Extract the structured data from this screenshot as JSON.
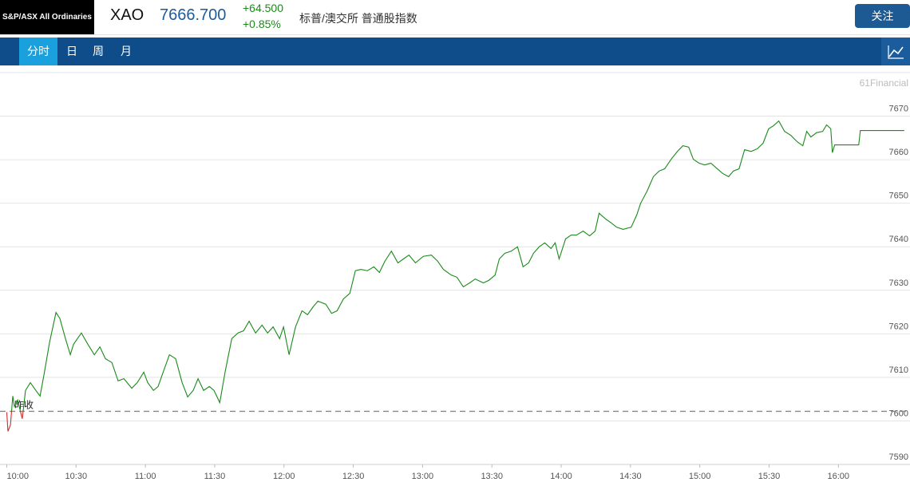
{
  "header": {
    "logo": "S&P/ASX All Ordinaries",
    "symbol": "XAO",
    "price": "7666.700",
    "change": "+64.500",
    "change_pct": "+0.85%",
    "name": "标普/澳交所 普通股指数",
    "follow_button": "关注"
  },
  "tabs": [
    "分时",
    "日",
    "周",
    "月"
  ],
  "chart_data": {
    "type": "line",
    "watermark": "61Financial",
    "color": "#1a8a1a",
    "down_color": "#d62b2b",
    "reference_line": {
      "label": "昨收",
      "value": 7602.2
    },
    "x": [
      0,
      0.5,
      1.6,
      2.6,
      3.3,
      4.7,
      6.7,
      8.1,
      10.2,
      12.6,
      14.4,
      16.1,
      18.5,
      21.3,
      23,
      25.4,
      27.5,
      28.9,
      30.6,
      32.3,
      35.1,
      37.9,
      40.3,
      42.7,
      45.5,
      48.2,
      50.7,
      54.1,
      56.5,
      59.3,
      61,
      63.5,
      65.5,
      67.9,
      70.4,
      73.1,
      75.9,
      78.3,
      80.7,
      82.8,
      85.2,
      87.7,
      89.7,
      92.2,
      94.6,
      97.4,
      100.1,
      102.5,
      104.9,
      107.7,
      110.5,
      112.9,
      115.3,
      118.1,
      119.8,
      122.2,
      125,
      127.8,
      130.2,
      132.6,
      134.7,
      138.1,
      140.6,
      143,
      145.7,
      148.5,
      150.9,
      153.3,
      156.1,
      158.9,
      161.3,
      163.7,
      166.5,
      169.3,
      171.7,
      174.1,
      176.9,
      180.3,
      183.8,
      186.5,
      189,
      192.4,
      194.9,
      197.6,
      200.4,
      202.8,
      206.3,
      208.7,
      211.4,
      213.2,
      215.6,
      218.4,
      221.1,
      223.5,
      225.9,
      228,
      230.5,
      232.9,
      235.6,
      237.4,
      239.1,
      241.9,
      244.3,
      246.7,
      249.5,
      252.3,
      254.7,
      256.4,
      259.2,
      261.6,
      264,
      266.8,
      270.3,
      272.7,
      274.4,
      277.2,
      279.9,
      282.4,
      284.8,
      287.6,
      290.3,
      292.7,
      295.2,
      297.2,
      299.7,
      302.1,
      304.8,
      307.6,
      310,
      312.5,
      314.5,
      317,
      319.4,
      322.2,
      324.9,
      327.4,
      329.8,
      331.9,
      334.2,
      336.7,
      339.4,
      342.2,
      344.6,
      346.3,
      348.1,
      350.5,
      353.2,
      354.9,
      356.7,
      357.4,
      358.4,
      368.8,
      369.5,
      388.5
    ],
    "values": [
      7602.0,
      7597.6,
      7599.1,
      7605.7,
      7603.3,
      7604.8,
      7600.5,
      7607.0,
      7608.8,
      7607.0,
      7605.7,
      7610.6,
      7618.0,
      7624.9,
      7623.5,
      7618.9,
      7615.2,
      7617.6,
      7618.9,
      7620.2,
      7617.6,
      7615.2,
      7617.0,
      7614.3,
      7613.4,
      7609.2,
      7609.7,
      7607.5,
      7608.8,
      7611.2,
      7608.8,
      7607.0,
      7607.9,
      7611.5,
      7615.2,
      7614.3,
      7608.8,
      7605.5,
      7607.0,
      7609.7,
      7607.0,
      7607.9,
      7607.0,
      7604.2,
      7611.5,
      7618.9,
      7620.2,
      7620.7,
      7622.9,
      7620.2,
      7622.0,
      7620.2,
      7621.6,
      7618.9,
      7621.6,
      7615.2,
      7621.6,
      7625.3,
      7624.4,
      7626.2,
      7627.5,
      7626.8,
      7624.7,
      7625.3,
      7628.0,
      7629.3,
      7634.5,
      7634.8,
      7634.5,
      7635.4,
      7634.1,
      7636.7,
      7639.0,
      7636.3,
      7637.2,
      7638.1,
      7636.3,
      7637.8,
      7638.1,
      7636.7,
      7634.8,
      7633.5,
      7633.0,
      7630.8,
      7631.7,
      7632.6,
      7631.7,
      7632.3,
      7633.5,
      7637.2,
      7638.5,
      7639.0,
      7640.0,
      7635.4,
      7636.3,
      7638.5,
      7640.0,
      7640.9,
      7639.6,
      7640.9,
      7637.2,
      7641.8,
      7642.7,
      7642.7,
      7643.6,
      7642.5,
      7643.6,
      7647.7,
      7646.4,
      7645.5,
      7644.5,
      7644.0,
      7644.5,
      7647.3,
      7650.0,
      7652.8,
      7656.1,
      7657.4,
      7657.9,
      7660.1,
      7661.9,
      7663.2,
      7662.9,
      7660.1,
      7659.2,
      7658.8,
      7659.2,
      7657.9,
      7656.8,
      7656.1,
      7657.4,
      7657.9,
      7662.3,
      7661.9,
      7662.5,
      7663.8,
      7667.1,
      7667.8,
      7668.9,
      7666.5,
      7665.6,
      7664.1,
      7663.2,
      7666.5,
      7665.2,
      7666.2,
      7666.5,
      7668.0,
      7667.1,
      7661.6,
      7663.4,
      7663.4,
      7666.7,
      7666.7
    ],
    "xlim": [
      0,
      391
    ],
    "xticks": [
      {
        "value": 0,
        "label": "10:00"
      },
      {
        "value": 30,
        "label": "10:30"
      },
      {
        "value": 60,
        "label": "11:00"
      },
      {
        "value": 90,
        "label": "11:30"
      },
      {
        "value": 120,
        "label": "12:00"
      },
      {
        "value": 150,
        "label": "12:30"
      },
      {
        "value": 180,
        "label": "13:00"
      },
      {
        "value": 210,
        "label": "13:30"
      },
      {
        "value": 240,
        "label": "14:00"
      },
      {
        "value": 270,
        "label": "14:30"
      },
      {
        "value": 300,
        "label": "15:00"
      },
      {
        "value": 330,
        "label": "15:30"
      },
      {
        "value": 360,
        "label": "16:00"
      }
    ],
    "ylim": [
      7590,
      7680
    ],
    "yticks": [
      7590,
      7600,
      7610,
      7620,
      7630,
      7640,
      7650,
      7660,
      7670
    ],
    "grid": true
  }
}
